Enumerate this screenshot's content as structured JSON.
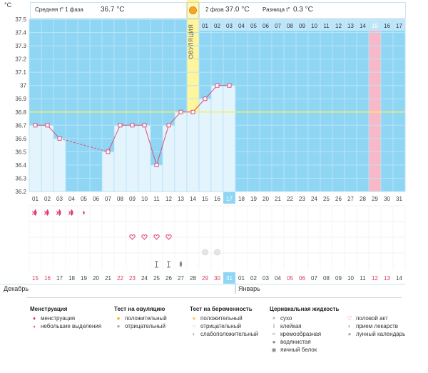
{
  "header": {
    "phase1_label": "Средняя t° 1 фаза",
    "phase1_value": "36.7 °C",
    "phase2_label": "2 фаза",
    "phase2_value": "37.0 °C",
    "diff_label": "Разница t°",
    "diff_value": "0.3 °C"
  },
  "y_unit": "°C",
  "ovulation_label": "ОВУЛЯЦИЯ",
  "months": {
    "left": "Декабрь",
    "right": "Январь"
  },
  "colors": {
    "phase1": "#e3f4fd",
    "phase2": "#e3f4fd",
    "grid_bg": "#8fd6f4",
    "line": "#d9507d",
    "ovulation": "#fff59b",
    "highlight": "#f9b8c8"
  },
  "top_days": [
    "01",
    "02",
    "03",
    "04",
    "05",
    "06",
    "07",
    "08",
    "09",
    "10",
    "11",
    "12",
    "13",
    "14",
    "15",
    "16",
    "17",
    "18",
    "19",
    "20",
    "21",
    "22",
    "23",
    "24",
    "25",
    "26",
    "27",
    "28",
    "29",
    "30",
    "31"
  ],
  "phase2_day_labels": [
    "01",
    "02",
    "03",
    "04",
    "05",
    "06",
    "07",
    "08",
    "09",
    "10",
    "11",
    "12",
    "13",
    "14",
    "15",
    "16",
    "17"
  ],
  "highlight_day_index": 28,
  "cycle_day_highlight_index": 16,
  "calendar_dates": [
    {
      "d": "15",
      "red": true
    },
    {
      "d": "16",
      "red": true
    },
    {
      "d": "17",
      "red": false
    },
    {
      "d": "18",
      "red": false
    },
    {
      "d": "19",
      "red": false
    },
    {
      "d": "20",
      "red": false
    },
    {
      "d": "21",
      "red": false
    },
    {
      "d": "22",
      "red": true
    },
    {
      "d": "23",
      "red": true
    },
    {
      "d": "24",
      "red": false
    },
    {
      "d": "25",
      "red": false
    },
    {
      "d": "26",
      "red": false
    },
    {
      "d": "27",
      "red": false
    },
    {
      "d": "28",
      "red": false
    },
    {
      "d": "29",
      "red": true
    },
    {
      "d": "30",
      "red": true
    },
    {
      "d": "31",
      "red": false,
      "selected": true
    },
    {
      "d": "01",
      "red": false
    },
    {
      "d": "02",
      "red": false
    },
    {
      "d": "03",
      "red": false
    },
    {
      "d": "04",
      "red": false
    },
    {
      "d": "05",
      "red": true
    },
    {
      "d": "06",
      "red": true
    },
    {
      "d": "07",
      "red": false
    },
    {
      "d": "08",
      "red": false
    },
    {
      "d": "09",
      "red": false
    },
    {
      "d": "10",
      "red": false
    },
    {
      "d": "11",
      "red": false
    },
    {
      "d": "12",
      "red": true
    },
    {
      "d": "13",
      "red": true
    },
    {
      "d": "14",
      "red": false
    }
  ],
  "chart_data": {
    "type": "line",
    "y_ticks": [
      "37.5",
      "37.4",
      "37.3",
      "37.2",
      "37.1",
      "37",
      "36.9",
      "36.8",
      "36.7",
      "36.6",
      "36.5",
      "36.4",
      "36.3",
      "36.2"
    ],
    "ylim": [
      36.2,
      37.5
    ],
    "coverline": 36.8,
    "ovulation_day": 14,
    "points": [
      {
        "day": 1,
        "t": 36.7
      },
      {
        "day": 2,
        "t": 36.7
      },
      {
        "day": 3,
        "t": 36.6
      },
      {
        "day": 7,
        "t": 36.5
      },
      {
        "day": 8,
        "t": 36.7
      },
      {
        "day": 9,
        "t": 36.7
      },
      {
        "day": 10,
        "t": 36.7
      },
      {
        "day": 11,
        "t": 36.4
      },
      {
        "day": 12,
        "t": 36.7
      },
      {
        "day": 13,
        "t": 36.8
      },
      {
        "day": 14,
        "t": 36.8
      },
      {
        "day": 15,
        "t": 36.9
      },
      {
        "day": 16,
        "t": 37.0
      },
      {
        "day": 17,
        "t": 37.0
      }
    ],
    "dashed_segments": [
      [
        3,
        7
      ]
    ]
  },
  "markers": {
    "menstruation": [
      {
        "day": 1,
        "type": "full"
      },
      {
        "day": 2,
        "type": "full"
      },
      {
        "day": 3,
        "type": "full"
      },
      {
        "day": 4,
        "type": "full"
      },
      {
        "day": 5,
        "type": "small"
      }
    ],
    "intercourse_days": [
      9,
      10,
      11,
      12
    ],
    "moon_days": [
      15,
      16
    ],
    "cervical": [
      {
        "day": 11,
        "type": "sticky"
      },
      {
        "day": 12,
        "type": "sticky"
      },
      {
        "day": 13,
        "type": "watery"
      }
    ]
  },
  "legend": {
    "menstruation": {
      "title": "Менструация",
      "items": [
        "менструация",
        "небольшие выделения"
      ]
    },
    "ovulation_test": {
      "title": "Тест на овуляцию",
      "items": [
        "положительный",
        "отрицательный"
      ]
    },
    "pregnancy_test": {
      "title": "Тест на беременность",
      "items": [
        "положительный",
        "отрицательный",
        "слабоположительный"
      ]
    },
    "cervical": {
      "title": "Церивкальная жидкость",
      "items": [
        "сухо",
        "клейкая",
        "кремообразная",
        "водянистая",
        "яичный белок"
      ]
    },
    "other": {
      "items": [
        "половой акт",
        "прием лекарств",
        "лунный календарь"
      ]
    }
  }
}
